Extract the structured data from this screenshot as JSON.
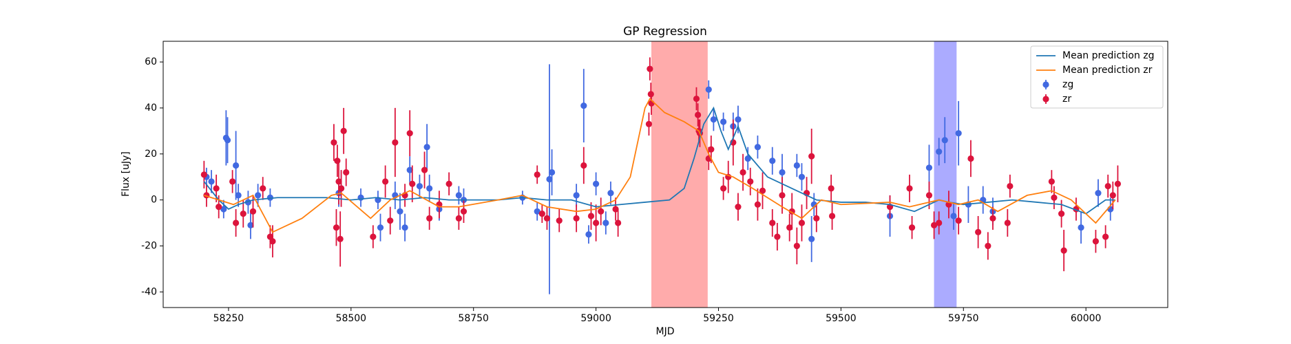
{
  "chart_data": {
    "type": "line",
    "title": "GP Regression",
    "xlabel": "MJD",
    "ylabel": "Flux [uJy]",
    "xlim": [
      58116.6,
      60167
    ],
    "ylim": [
      -46.8,
      69
    ],
    "xticks": [
      58250,
      58500,
      58750,
      59000,
      59250,
      59500,
      59750,
      60000
    ],
    "yticks": [
      -40,
      -20,
      0,
      20,
      40,
      60
    ],
    "legend": "upper right",
    "spans": [
      {
        "x0": 59113,
        "x1": 59228,
        "color": "#ff0000",
        "opacity": 0.33
      },
      {
        "x0": 59690,
        "x1": 59736,
        "color": "#0000ff",
        "opacity": 0.33
      }
    ],
    "series": [
      {
        "name": "Mean prediction zg",
        "style": "line",
        "color": "#1f77b4",
        "x": [
          58200,
          58230,
          58250,
          58270,
          58300,
          58350,
          58400,
          58450,
          58500,
          58550,
          58600,
          58650,
          58700,
          58750,
          58800,
          58850,
          58900,
          58950,
          59000,
          59050,
          59100,
          59150,
          59180,
          59200,
          59220,
          59240,
          59255,
          59270,
          59290,
          59310,
          59350,
          59400,
          59450,
          59500,
          59550,
          59600,
          59650,
          59680,
          59700,
          59720,
          59750,
          59800,
          59850,
          59900,
          59950,
          60000,
          60020,
          60040,
          60060
        ],
        "values": [
          8,
          0,
          -4,
          -2,
          0,
          1,
          1,
          1,
          0,
          1,
          0,
          1,
          0,
          0,
          0,
          1,
          0,
          0,
          -3,
          -2,
          -1,
          0,
          5,
          18,
          33,
          40,
          30,
          22,
          32,
          20,
          10,
          5,
          0,
          -1,
          -1,
          -2,
          -5,
          -2,
          0,
          -1,
          -2,
          -1,
          0,
          -1,
          -2,
          -6,
          -3,
          0,
          0
        ]
      },
      {
        "name": "Mean prediction zr",
        "style": "line",
        "color": "#ff7f0e",
        "x": [
          58200,
          58260,
          58300,
          58340,
          58400,
          58460,
          58480,
          58540,
          58580,
          58620,
          58680,
          58720,
          58800,
          58850,
          58900,
          58960,
          59000,
          59040,
          59070,
          59100,
          59110,
          59140,
          59180,
          59210,
          59230,
          59250,
          59280,
          59320,
          59380,
          59420,
          59460,
          59500,
          59600,
          59640,
          59700,
          59740,
          59780,
          59820,
          59880,
          59930,
          59970,
          60020,
          60060
        ],
        "values": [
          2,
          -2,
          2,
          -14,
          -8,
          2,
          3,
          -8,
          0,
          4,
          -3,
          -3,
          0,
          2,
          -3,
          -5,
          -4,
          0,
          10,
          40,
          44,
          38,
          34,
          30,
          20,
          12,
          10,
          5,
          -3,
          -8,
          0,
          -2,
          -1,
          -3,
          0,
          -2,
          0,
          -5,
          2,
          4,
          0,
          -10,
          0
        ]
      },
      {
        "name": "zg",
        "style": "errorbar",
        "color": "#4169e1",
        "x": [
          58205,
          58215,
          58240,
          58245,
          58248,
          58265,
          58270,
          58290,
          58295,
          58310,
          58335,
          58475,
          58480,
          58520,
          58555,
          58560,
          58590,
          58600,
          58610,
          58620,
          58640,
          58655,
          58660,
          58680,
          58720,
          58730,
          58850,
          58880,
          58905,
          58910,
          58960,
          58975,
          58985,
          59000,
          59020,
          59030,
          59230,
          59240,
          59260,
          59280,
          59290,
          59310,
          59330,
          59360,
          59380,
          59410,
          59420,
          59440,
          59445,
          59600,
          59680,
          59700,
          59712,
          59730,
          59740,
          59760,
          59790,
          59810,
          59990,
          60025,
          60050
        ],
        "values": [
          10,
          8,
          -4,
          27,
          26,
          15,
          2,
          -1,
          -11,
          2,
          1,
          3,
          5,
          1,
          0,
          -12,
          2,
          -5,
          -12,
          13,
          6,
          23,
          5,
          -4,
          2,
          0,
          1,
          -5,
          9,
          12,
          2,
          41,
          -15,
          7,
          -10,
          3,
          48,
          35,
          34,
          32,
          35,
          18,
          23,
          17,
          12,
          15,
          10,
          -17,
          -2,
          -7,
          14,
          21,
          26,
          -7,
          29,
          -2,
          0,
          -5,
          -12,
          3,
          -4
        ],
        "errors": [
          4,
          5,
          4,
          12,
          10,
          15,
          5,
          5,
          6,
          5,
          4,
          6,
          8,
          4,
          4,
          6,
          6,
          8,
          6,
          6,
          5,
          10,
          6,
          5,
          4,
          5,
          3,
          4,
          50,
          10,
          5,
          16,
          4,
          5,
          5,
          5,
          4,
          5,
          4,
          6,
          6,
          5,
          5,
          6,
          8,
          5,
          6,
          10,
          5,
          9,
          10,
          6,
          10,
          6,
          14,
          8,
          6,
          6,
          7,
          6,
          5
        ]
      },
      {
        "name": "zr",
        "style": "errorbar",
        "color": "#dc143c",
        "x": [
          58200,
          58205,
          58225,
          58230,
          58258,
          58265,
          58280,
          58300,
          58320,
          58335,
          58340,
          58465,
          58470,
          58472,
          58475,
          58478,
          58480,
          58485,
          58490,
          58545,
          58570,
          58580,
          58590,
          58610,
          58620,
          58625,
          58650,
          58660,
          58680,
          58700,
          58720,
          58730,
          58880,
          58890,
          58900,
          58925,
          58960,
          58975,
          58990,
          59000,
          59010,
          59040,
          59045,
          59110,
          59112,
          59113,
          59108,
          59205,
          59208,
          59210,
          59212,
          59230,
          59235,
          59260,
          59270,
          59280,
          59290,
          59300,
          59315,
          59330,
          59340,
          59360,
          59370,
          59380,
          59395,
          59400,
          59410,
          59420,
          59430,
          59440,
          59450,
          59480,
          59482,
          59600,
          59640,
          59645,
          59680,
          59690,
          59700,
          59720,
          59740,
          59765,
          59780,
          59800,
          59810,
          59840,
          59845,
          59930,
          59935,
          59950,
          59955,
          59980,
          60020,
          60040,
          60045,
          60055,
          60065
        ],
        "values": [
          11,
          2,
          5,
          -3,
          8,
          -10,
          -6,
          -5,
          5,
          -16,
          -18,
          25,
          -12,
          17,
          8,
          -17,
          5,
          30,
          12,
          -16,
          8,
          -9,
          25,
          2,
          29,
          7,
          13,
          -8,
          -2,
          7,
          -8,
          -5,
          11,
          -6,
          -8,
          -9,
          -8,
          15,
          -7,
          -10,
          -5,
          -4,
          -10,
          57,
          46,
          42,
          33,
          44,
          37,
          30,
          29,
          18,
          22,
          5,
          10,
          25,
          -3,
          12,
          8,
          -2,
          4,
          -10,
          -16,
          2,
          -12,
          -5,
          -20,
          -10,
          3,
          19,
          -8,
          5,
          -7,
          -3,
          5,
          -12,
          2,
          -11,
          -10,
          -2,
          -9,
          18,
          -14,
          -20,
          -8,
          -10,
          6,
          8,
          1,
          -6,
          -22,
          -4,
          -18,
          -16,
          6,
          2,
          7
        ],
        "errors": [
          6,
          5,
          6,
          5,
          5,
          6,
          6,
          7,
          5,
          5,
          7,
          8,
          8,
          7,
          10,
          12,
          8,
          10,
          6,
          5,
          7,
          6,
          15,
          5,
          10,
          8,
          8,
          5,
          6,
          5,
          5,
          5,
          4,
          4,
          5,
          5,
          6,
          8,
          6,
          8,
          6,
          5,
          6,
          5,
          5,
          5,
          5,
          5,
          5,
          5,
          6,
          5,
          6,
          5,
          7,
          10,
          6,
          8,
          6,
          7,
          8,
          6,
          6,
          8,
          6,
          8,
          8,
          8,
          7,
          12,
          6,
          6,
          6,
          5,
          6,
          5,
          6,
          6,
          5,
          6,
          6,
          8,
          7,
          6,
          5,
          6,
          5,
          5,
          5,
          6,
          9,
          5,
          5,
          5,
          5,
          6,
          8
        ]
      }
    ]
  }
}
